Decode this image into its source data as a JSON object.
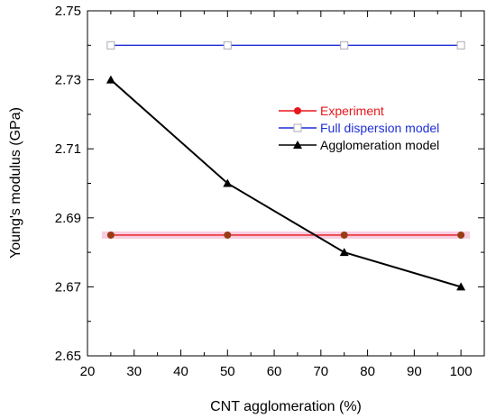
{
  "chart_data": {
    "type": "line",
    "xlabel": "CNT agglomeration (%)",
    "ylabel": "Young's modulus (GPa)",
    "xlim": [
      20,
      105
    ],
    "ylim": [
      2.65,
      2.75
    ],
    "x_ticks": [
      "20",
      "30",
      "40",
      "50",
      "60",
      "70",
      "80",
      "90",
      "100"
    ],
    "y_ticks": [
      "2.65",
      "2.67",
      "2.69",
      "2.71",
      "2.73",
      "2.75"
    ],
    "grid": false,
    "legend_position": "inside-right",
    "series": [
      {
        "name": "Experiment",
        "color": "#e8161b",
        "marker": "filled-circle",
        "x": [
          25,
          50,
          75,
          100
        ],
        "y": [
          2.685,
          2.685,
          2.685,
          2.685
        ]
      },
      {
        "name": "Full dispersion model",
        "color": "#1f2fd6",
        "marker": "open-square",
        "x": [
          25,
          50,
          75,
          100
        ],
        "y": [
          2.74,
          2.74,
          2.74,
          2.74
        ]
      },
      {
        "name": "Agglomeration model",
        "color": "#000000",
        "marker": "filled-triangle",
        "x": [
          25,
          50,
          75,
          100
        ],
        "y": [
          2.73,
          2.7,
          2.68,
          2.67
        ]
      }
    ]
  }
}
